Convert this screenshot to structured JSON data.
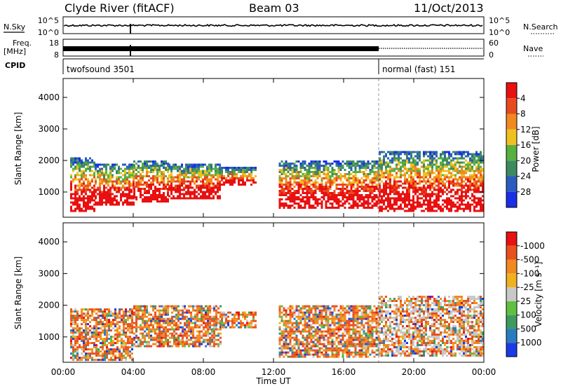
{
  "header": {
    "station": "Clyde River (fitACF)",
    "beam": "Beam 03",
    "date": "11/Oct/2013"
  },
  "status_panels": {
    "nsky_label": "N.Sky",
    "nsky_ticks": [
      "10^5",
      "10^0"
    ],
    "nsearch_label": "N.Search",
    "nsearch_ticks": [
      "10^5",
      "10^0"
    ],
    "freq_label": "Freq.",
    "freq_unit": "[MHz]",
    "freq_ticks": [
      "18",
      "8"
    ],
    "nave_label": "Nave",
    "nave_ticks": [
      "60",
      "0"
    ],
    "cpid_label": "CPID",
    "cpid_modes": [
      {
        "name": "twofsound 3501",
        "start_hour": 0,
        "end_hour": 18
      },
      {
        "name": "normal (fast) 151",
        "start_hour": 18,
        "end_hour": 24
      }
    ]
  },
  "chart_data": [
    {
      "type": "heatmap",
      "name": "power",
      "ylabel": "Slant Range [km]",
      "yticks": [
        1000,
        2000,
        3000,
        4000
      ],
      "ylim": [
        200,
        4600
      ],
      "xlim": [
        0,
        24
      ],
      "colorbar": {
        "label": "Power [dB]",
        "ticks": [
          "4",
          "8",
          "12",
          "16",
          "20",
          "24",
          "28"
        ],
        "colors": [
          "#1a2ee6",
          "#2a5cc0",
          "#3d8a60",
          "#58b040",
          "#f0c020",
          "#f08a20",
          "#e84a20",
          "#e81010"
        ]
      },
      "echo_regions": [
        {
          "start_hour": 0.4,
          "end_hour": 1.8,
          "range_low": 400,
          "range_high": 2100
        },
        {
          "start_hour": 1.8,
          "end_hour": 4.0,
          "range_low": 600,
          "range_high": 1900
        },
        {
          "start_hour": 4.0,
          "end_hour": 6.0,
          "range_low": 700,
          "range_high": 2000
        },
        {
          "start_hour": 6.0,
          "end_hour": 9.0,
          "range_low": 800,
          "range_high": 1900
        },
        {
          "start_hour": 9.0,
          "end_hour": 11.0,
          "range_low": 1200,
          "range_high": 1800
        },
        {
          "start_hour": 12.3,
          "end_hour": 18.0,
          "range_low": 500,
          "range_high": 2000
        },
        {
          "start_hour": 18.0,
          "end_hour": 24.0,
          "range_low": 400,
          "range_high": 2300
        }
      ]
    },
    {
      "type": "heatmap",
      "name": "velocity",
      "ylabel": "Slant Range [km]",
      "yticks": [
        1000,
        2000,
        3000,
        4000
      ],
      "ylim": [
        200,
        4600
      ],
      "xlim": [
        0,
        24
      ],
      "xticks": [
        "00:00",
        "04:00",
        "08:00",
        "12:00",
        "16:00",
        "20:00",
        "00:00"
      ],
      "xlabel": "Time UT",
      "colorbar": {
        "label": "Velocity [m s⁻¹]",
        "ticks": [
          "1000",
          "500",
          "100",
          "25",
          "-25",
          "-100",
          "-500",
          "-1000"
        ],
        "colors": [
          "#1a3ae6",
          "#2a7cc0",
          "#3d9a60",
          "#60c040",
          "#c8c8c8",
          "#f0b020",
          "#f08a20",
          "#e85020",
          "#e81010"
        ]
      },
      "echo_regions": [
        {
          "start_hour": 0.4,
          "end_hour": 4.0,
          "range_low": 300,
          "range_high": 1900
        },
        {
          "start_hour": 4.0,
          "end_hour": 9.0,
          "range_low": 700,
          "range_high": 2000
        },
        {
          "start_hour": 9.0,
          "end_hour": 11.0,
          "range_low": 1300,
          "range_high": 1800
        },
        {
          "start_hour": 12.3,
          "end_hour": 18.0,
          "range_low": 400,
          "range_high": 2000
        },
        {
          "start_hour": 18.0,
          "end_hour": 24.0,
          "range_low": 400,
          "range_high": 2300
        }
      ]
    }
  ]
}
